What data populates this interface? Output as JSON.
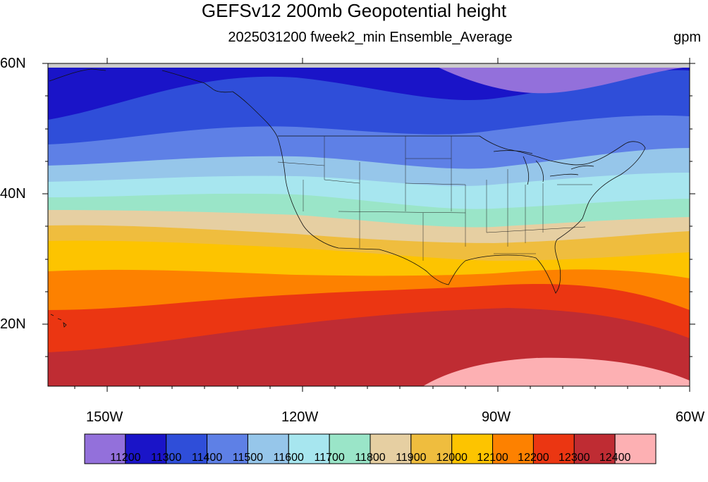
{
  "title": "GEFSv12 200mb Geopotential height",
  "subtitle": "2025031200 fweek2_min Ensemble_Average",
  "units": "gpm",
  "lat_labels": [
    "60N",
    "40N",
    "20N"
  ],
  "lon_labels": [
    "150W",
    "120W",
    "90W",
    "60W"
  ],
  "colorbar": {
    "colors": [
      "#9370db",
      "#1a14c8",
      "#2f4ed9",
      "#5e80e6",
      "#96c6ea",
      "#a7e6ef",
      "#9ae5c8",
      "#e6cfa2",
      "#efbd3e",
      "#fdc400",
      "#fd8100",
      "#eb3612",
      "#bf2c33",
      "#fdb0b3"
    ],
    "labels": [
      "11200",
      "11300",
      "11400",
      "11500",
      "11600",
      "11700",
      "11800",
      "11900",
      "12000",
      "12100",
      "12200",
      "12300",
      "12400"
    ]
  },
  "chart_data": {
    "type": "heatmap",
    "title": "GEFSv12 200mb Geopotential height",
    "subtitle": "2025031200 fweek2_min Ensemble_Average",
    "units": "gpm",
    "domain": {
      "lon": [
        -160,
        -60
      ],
      "lat": [
        10,
        60
      ]
    },
    "levels": [
      11200,
      11300,
      11400,
      11500,
      11600,
      11700,
      11800,
      11900,
      12000,
      12100,
      12200,
      12300,
      12400
    ]
  }
}
